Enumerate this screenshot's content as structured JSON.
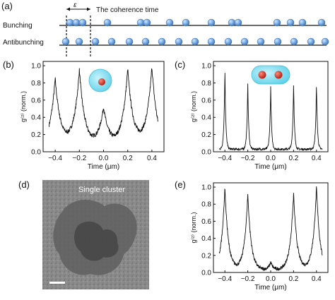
{
  "panel_a": {
    "label": "(a)",
    "tau_symbol": "ε",
    "coherence_text": "The coherence time",
    "rows": [
      {
        "name": "Bunching"
      },
      {
        "name": "Antibunching"
      }
    ],
    "colors": {
      "sphere": "#6fa3dd",
      "sphere_edge": "#3d6fb0",
      "line": "#111111"
    }
  },
  "panel_b": {
    "label": "(b)",
    "xlabel": "Time (μm)",
    "ylabel": "g⁽²⁾ (norm.)"
  },
  "panel_c": {
    "label": "(c)",
    "xlabel": "Time (μm)",
    "ylabel": "g⁽²⁾ (norm.)"
  },
  "panel_d": {
    "label": "(d)",
    "caption": "Single cluster"
  },
  "panel_e": {
    "label": "(e)",
    "xlabel": "Time (μm)",
    "ylabel": "g⁽²⁾ (norm.)"
  },
  "chart_data": [
    {
      "panel": "b",
      "type": "line",
      "xlabel": "Time (μm)",
      "ylabel": "g⁽²⁾ (norm.)",
      "xlim": [
        -0.5,
        0.5
      ],
      "ylim": [
        0.0,
        1.05
      ],
      "xticks": [
        "-0.4",
        "-0.2",
        "0.0",
        "0.2",
        "0.4"
      ],
      "yticks": [
        "0.0",
        "0.2",
        "0.4",
        "0.6",
        "0.8",
        "1.0"
      ],
      "peaks": [
        {
          "x": -0.4,
          "y": 0.84,
          "width": 0.045
        },
        {
          "x": -0.2,
          "y": 0.94,
          "width": 0.045
        },
        {
          "x": 0.0,
          "y": 0.5,
          "width": 0.045
        },
        {
          "x": 0.2,
          "y": 0.95,
          "width": 0.045
        },
        {
          "x": 0.4,
          "y": 0.98,
          "width": 0.045
        }
      ],
      "baseline": 0.05,
      "noise": 0.025
    },
    {
      "panel": "c",
      "type": "line",
      "xlabel": "Time (μm)",
      "ylabel": "g⁽²⁾ (norm.)",
      "xlim": [
        -0.5,
        0.5
      ],
      "ylim": [
        0.0,
        1.05
      ],
      "xticks": [
        "-0.4",
        "-0.2",
        "0.0",
        "0.2",
        "0.4"
      ],
      "yticks": [
        "0.0",
        "0.2",
        "0.4",
        "0.6",
        "0.8",
        "1.0"
      ],
      "peaks": [
        {
          "x": -0.4,
          "y": 0.97,
          "width": 0.008
        },
        {
          "x": -0.2,
          "y": 0.8,
          "width": 0.008
        },
        {
          "x": 0.0,
          "y": 0.76,
          "width": 0.008
        },
        {
          "x": 0.2,
          "y": 0.8,
          "width": 0.008
        },
        {
          "x": 0.4,
          "y": 0.8,
          "width": 0.008
        }
      ],
      "baseline": 0.03,
      "noise": 0.012
    },
    {
      "panel": "e",
      "type": "line",
      "xlabel": "Time (μm)",
      "ylabel": "g⁽²⁾ (norm.)",
      "xlim": [
        -0.5,
        0.5
      ],
      "ylim": [
        0.0,
        1.05
      ],
      "xticks": [
        "-0.4",
        "-0.2",
        "0.0",
        "0.2",
        "0.4"
      ],
      "yticks": [
        "0.0",
        "0.2",
        "0.4",
        "0.6",
        "0.8",
        "1.0"
      ],
      "peaks": [
        {
          "x": -0.4,
          "y": 1.0,
          "width": 0.03
        },
        {
          "x": -0.2,
          "y": 0.92,
          "width": 0.03
        },
        {
          "x": 0.0,
          "y": 0.12,
          "width": 0.02
        },
        {
          "x": 0.2,
          "y": 0.92,
          "width": 0.03
        },
        {
          "x": 0.4,
          "y": 1.0,
          "width": 0.03
        }
      ],
      "baseline": 0.03,
      "noise": 0.02
    }
  ]
}
